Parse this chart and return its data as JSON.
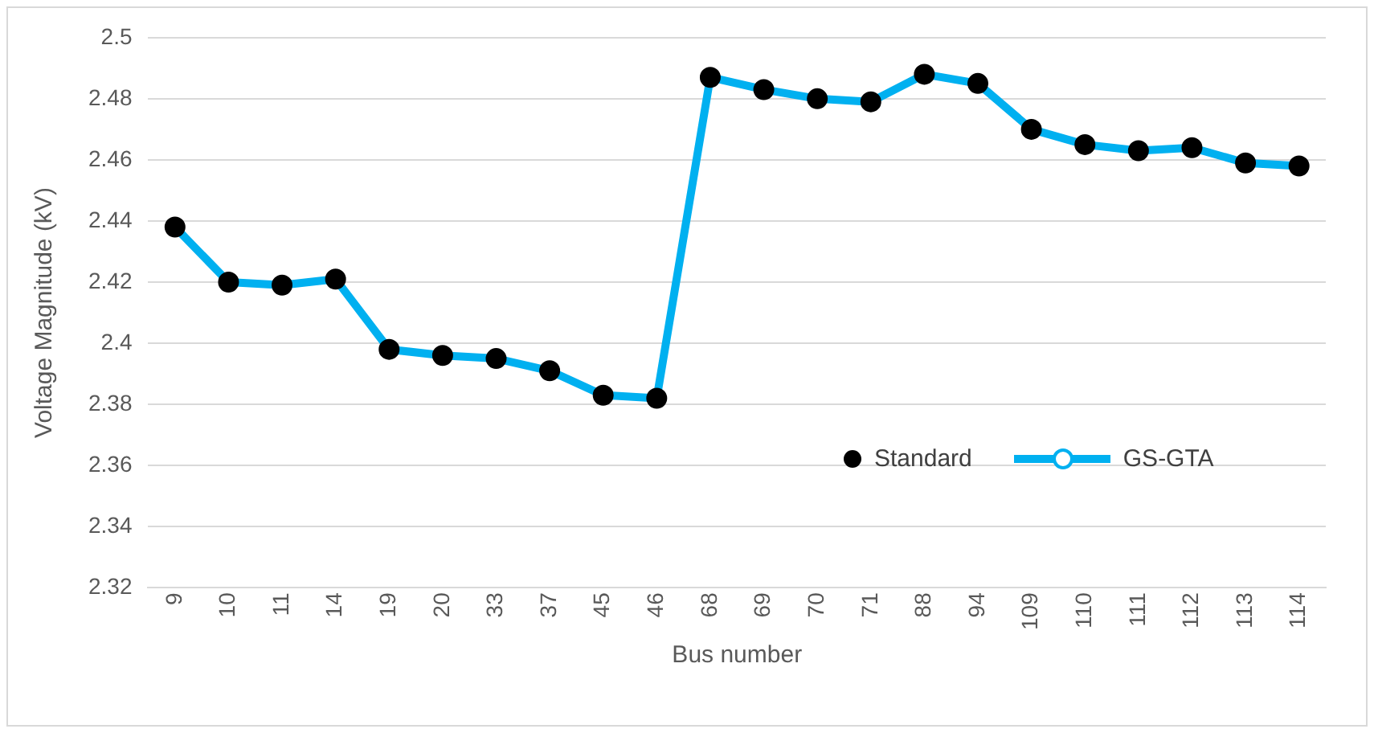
{
  "chart_data": {
    "type": "line",
    "xlabel": "Bus number",
    "ylabel": "Voltage Magnitude (kV)",
    "categories": [
      "9",
      "10",
      "11",
      "14",
      "19",
      "20",
      "33",
      "37",
      "45",
      "46",
      "68",
      "69",
      "70",
      "71",
      "88",
      "94",
      "109",
      "110",
      "111",
      "112",
      "113",
      "114"
    ],
    "series": [
      {
        "name": "Standard",
        "type": "scatter",
        "color": "#000000",
        "marker": "circle",
        "values": [
          2.438,
          2.42,
          2.419,
          2.421,
          2.398,
          2.396,
          2.395,
          2.391,
          2.383,
          2.382,
          2.487,
          2.483,
          2.48,
          2.479,
          2.488,
          2.485,
          2.47,
          2.465,
          2.463,
          2.464,
          2.459,
          2.458
        ]
      },
      {
        "name": "GS-GTA",
        "color": "#00b0f0",
        "marker": "circle",
        "line_style": "solid",
        "values": [
          2.438,
          2.42,
          2.419,
          2.421,
          2.398,
          2.396,
          2.395,
          2.391,
          2.383,
          2.382,
          2.487,
          2.483,
          2.48,
          2.479,
          2.488,
          2.485,
          2.47,
          2.465,
          2.463,
          2.464,
          2.459,
          2.458
        ]
      }
    ],
    "ylim": [
      2.32,
      2.5
    ],
    "yticks": [
      2.32,
      2.34,
      2.36,
      2.38,
      2.4,
      2.42,
      2.44,
      2.46,
      2.48,
      2.5
    ],
    "grid": "y",
    "legend": "bottom right"
  }
}
